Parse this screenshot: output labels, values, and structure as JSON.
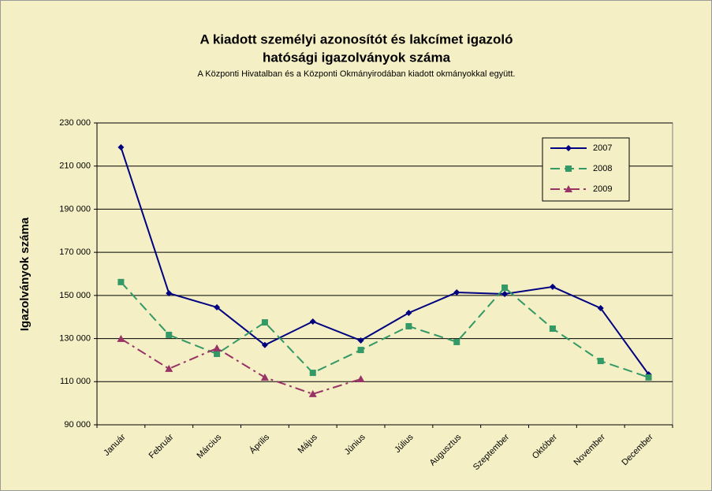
{
  "chart_data": {
    "type": "line",
    "title": [
      "A kiadott személyi azonosítót és lakcímet igazoló",
      "hatósági igazolványok száma"
    ],
    "subtitle": "A Központi Hivatalban és a Központi Okmányirodában kiadott okmányokkal együtt.",
    "y_label": "Igazolványok száma",
    "categories": [
      "Január",
      "Február",
      "Március",
      "Április",
      "Május",
      "Június",
      "Július",
      "Augusztus",
      "Szeptember",
      "Október",
      "November",
      "December"
    ],
    "series": [
      {
        "name": "2007",
        "color": "#000080",
        "marker": "diamond",
        "dash": "none",
        "values": [
          218700,
          151000,
          144500,
          127000,
          137900,
          129100,
          141900,
          151400,
          150700,
          154000,
          144100,
          113400
        ]
      },
      {
        "name": "2008",
        "color": "#339966",
        "marker": "square",
        "dash": "12 6",
        "values": [
          156200,
          131700,
          122900,
          137500,
          114100,
          124700,
          135700,
          128400,
          153600,
          134600,
          119600,
          112000
        ]
      },
      {
        "name": "2009",
        "color": "#993366",
        "marker": "triangle",
        "dash": "12 5 3 5",
        "values": [
          129900,
          116000,
          125500,
          112000,
          104300,
          111200,
          null,
          null,
          null,
          null,
          null,
          null
        ]
      }
    ],
    "ylim": [
      90000,
      230000
    ],
    "yticks": [
      {
        "value": 90000,
        "label": "90 000"
      },
      {
        "value": 110000,
        "label": "110 000"
      },
      {
        "value": 130000,
        "label": "130 000"
      },
      {
        "value": 150000,
        "label": "150 000"
      },
      {
        "value": 170000,
        "label": "170 000"
      },
      {
        "value": 190000,
        "label": "190 000"
      },
      {
        "value": 210000,
        "label": "210 000"
      },
      {
        "value": 230000,
        "label": "230 000"
      }
    ],
    "grid": true,
    "legend": "top-right"
  }
}
